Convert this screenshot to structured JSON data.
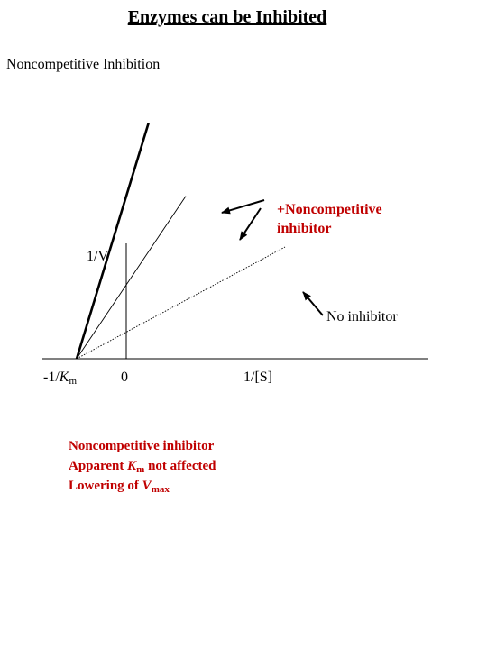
{
  "page": {
    "title": "Enzymes can be Inhibited",
    "subtitle": "Noncompetitive Inhibition"
  },
  "chart_data": {
    "type": "line",
    "xlabel": "1/[S]",
    "ylabel": "1/V",
    "x_tick_labels": {
      "neg_inv_km": {
        "prefix": "-1/",
        "var": "K",
        "sub": "m"
      },
      "zero": "0"
    },
    "intercept_x": -1,
    "xlim": [
      -1.3,
      5.1
    ],
    "ylim": [
      0,
      4.2
    ],
    "series": [
      {
        "name": "",
        "style": "thick",
        "slope": 4.4
      },
      {
        "name": "",
        "style": "thin",
        "slope": 2.0
      },
      {
        "name": "",
        "style": "dotted",
        "slope": 0.72
      }
    ],
    "annotations": {
      "inhibitor_label_line1": "+Noncompetitive",
      "inhibitor_label_line2": "inhibitor",
      "no_inhibitor_label": "No inhibitor"
    }
  },
  "notes": {
    "line1": "Noncompetitive inhibitor",
    "line2_prefix": "Apparent ",
    "line2_var": "K",
    "line2_sub": "m",
    "line2_suffix": " not affected",
    "line3_prefix": "Lowering of  ",
    "line3_var": "V",
    "line3_sub": "max"
  }
}
